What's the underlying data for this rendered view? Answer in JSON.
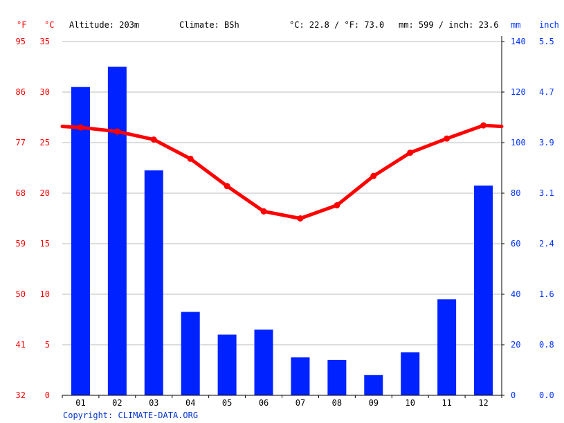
{
  "header": {
    "unit_f": "°F",
    "unit_c": "°C",
    "altitude": "Altitude: 203m",
    "climate": "Climate: BSh",
    "temp_avg": "°C: 22.8 / °F: 73.0",
    "precip_avg": "mm: 599 / inch: 23.6",
    "unit_mm": "mm",
    "unit_inch": "inch"
  },
  "axes": {
    "f_ticks": [
      "32",
      "41",
      "50",
      "59",
      "68",
      "77",
      "86",
      "95"
    ],
    "c_ticks": [
      "0",
      "5",
      "10",
      "15",
      "20",
      "25",
      "30",
      "35"
    ],
    "mm_ticks": [
      "0",
      "20",
      "40",
      "60",
      "80",
      "100",
      "120",
      "140"
    ],
    "inch_ticks": [
      "0.0",
      "0.8",
      "1.6",
      "2.4",
      "3.1",
      "3.9",
      "4.7",
      "5.5"
    ]
  },
  "footer": {
    "copyright": "Copyright: CLIMATE-DATA.ORG"
  },
  "colors": {
    "temperature": "#ff0000",
    "precipitation": "#0022ff",
    "grid": "#bbbbbb",
    "axis": "#000000"
  },
  "chart_data": {
    "type": "bar",
    "categories": [
      "01",
      "02",
      "03",
      "04",
      "05",
      "06",
      "07",
      "08",
      "09",
      "10",
      "11",
      "12"
    ],
    "series": [
      {
        "type": "bar",
        "axis": "mm",
        "values": [
          122,
          130,
          89,
          33,
          24,
          26,
          15,
          14,
          8,
          17,
          38,
          83
        ]
      },
      {
        "type": "line",
        "axis": "°C",
        "values": [
          26.5,
          26.1,
          25.3,
          23.4,
          20.7,
          18.2,
          17.5,
          18.8,
          21.7,
          24.0,
          25.4,
          26.7
        ]
      }
    ],
    "ylim_c": [
      0,
      35
    ],
    "ylim_mm": [
      0,
      140
    ],
    "grid": true
  }
}
